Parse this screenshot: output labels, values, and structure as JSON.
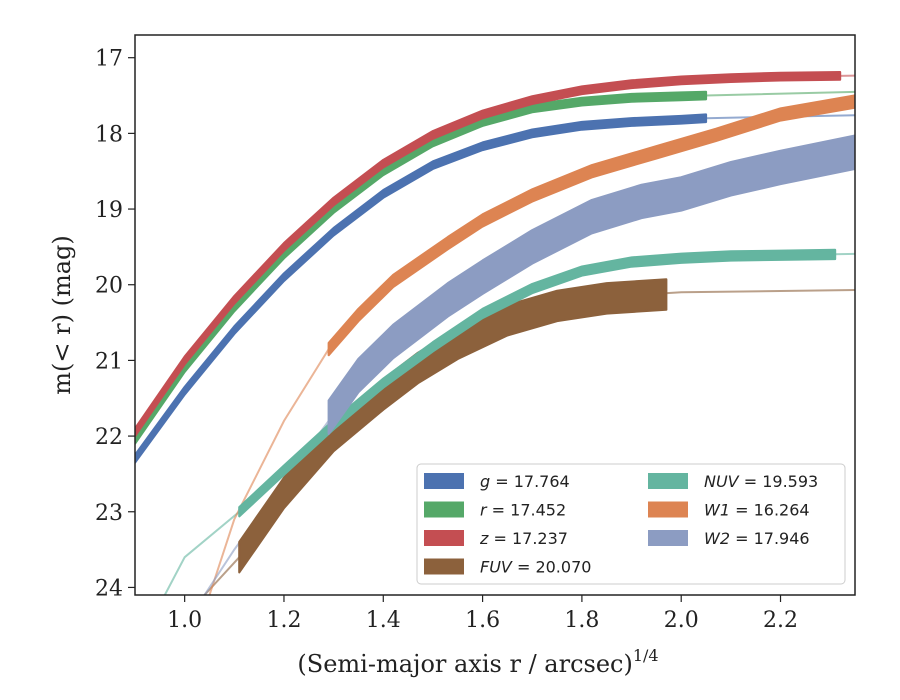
{
  "chart_data": {
    "type": "line",
    "title": "",
    "xlabel": "(Semi-major axis r / arcsec)",
    "xlabel_superscript": "1/4",
    "ylabel": "m(< r) (mag)",
    "xlim": [
      0.9,
      2.35
    ],
    "ylim": [
      24.1,
      16.7
    ],
    "y_inverted": true,
    "grid": false,
    "legend_placement": "lower-right",
    "xticks": [
      "1.0",
      "1.2",
      "1.4",
      "1.6",
      "1.8",
      "2.0",
      "2.2"
    ],
    "yticks": [
      "17",
      "18",
      "19",
      "20",
      "21",
      "22",
      "23",
      "24"
    ],
    "series": [
      {
        "name": "g",
        "label_value": "17.764",
        "color": "#4c72b0",
        "data_x": [
          0.9,
          1.0,
          1.1,
          1.2,
          1.3,
          1.4,
          1.5,
          1.6,
          1.7,
          1.8,
          1.9,
          2.0,
          2.05
        ],
        "data_y": [
          22.3,
          21.4,
          20.6,
          19.9,
          19.3,
          18.8,
          18.42,
          18.17,
          18.0,
          17.9,
          17.85,
          17.82,
          17.8
        ],
        "model_x": [
          2.05,
          2.35
        ],
        "model_y": [
          17.8,
          17.76
        ],
        "band": 0.05
      },
      {
        "name": "r",
        "label_value": "17.452",
        "color": "#55a868",
        "data_x": [
          0.9,
          1.0,
          1.1,
          1.2,
          1.3,
          1.4,
          1.5,
          1.6,
          1.7,
          1.8,
          1.9,
          2.0,
          2.05
        ],
        "data_y": [
          22.05,
          21.1,
          20.3,
          19.6,
          19.0,
          18.5,
          18.12,
          17.85,
          17.67,
          17.58,
          17.53,
          17.51,
          17.5
        ],
        "model_x": [
          2.05,
          2.35
        ],
        "model_y": [
          17.5,
          17.452
        ],
        "band": 0.05
      },
      {
        "name": "z",
        "label_value": "17.237",
        "color": "#c44e52",
        "data_x": [
          0.9,
          1.0,
          1.1,
          1.2,
          1.3,
          1.4,
          1.5,
          1.6,
          1.7,
          1.8,
          1.9,
          2.0,
          2.1,
          2.2,
          2.32
        ],
        "data_y": [
          21.95,
          21.0,
          20.2,
          19.5,
          18.9,
          18.4,
          18.02,
          17.75,
          17.56,
          17.43,
          17.35,
          17.3,
          17.27,
          17.25,
          17.24
        ],
        "model_x": [
          2.32,
          2.35
        ],
        "model_y": [
          17.24,
          17.237
        ],
        "band": 0.05
      },
      {
        "name": "FUV",
        "label_value": "20.070",
        "color": "#8c613c",
        "data_x": [
          1.11,
          1.2,
          1.3,
          1.4,
          1.47,
          1.55,
          1.65,
          1.75,
          1.85,
          1.97
        ],
        "data_y": [
          23.6,
          22.75,
          22.0,
          21.45,
          21.1,
          20.78,
          20.47,
          20.28,
          20.18,
          20.13
        ],
        "model_x": [
          1.04,
          1.11,
          1.2,
          1.4,
          1.6,
          1.8,
          2.0,
          2.35
        ],
        "model_y": [
          24.1,
          23.6,
          22.75,
          21.45,
          20.55,
          20.18,
          20.1,
          20.07
        ],
        "band": 0.2
      },
      {
        "name": "NUV",
        "label_value": "19.593",
        "color": "#64b5a0",
        "data_x": [
          1.11,
          1.2,
          1.3,
          1.4,
          1.5,
          1.6,
          1.7,
          1.8,
          1.9,
          2.0,
          2.1,
          2.2,
          2.31
        ],
        "data_y": [
          23.0,
          22.45,
          21.85,
          21.3,
          20.82,
          20.38,
          20.05,
          19.82,
          19.7,
          19.65,
          19.62,
          19.61,
          19.6
        ],
        "model_x": [
          0.96,
          1.0,
          1.11,
          1.3,
          1.5,
          1.7,
          1.9,
          2.1,
          2.35
        ],
        "model_y": [
          24.1,
          23.6,
          23.0,
          21.85,
          20.82,
          20.05,
          19.7,
          19.62,
          19.593
        ],
        "band": 0.06
      },
      {
        "name": "W1",
        "label_value": "16.264",
        "color": "#dd8452",
        "data_x": [
          1.29,
          1.35,
          1.42,
          1.53,
          1.6,
          1.7,
          1.82,
          1.95,
          2.07,
          2.2,
          2.35
        ],
        "data_y": [
          20.85,
          20.4,
          19.95,
          19.45,
          19.15,
          18.82,
          18.5,
          18.25,
          18.02,
          17.75,
          17.58
        ],
        "model_x": [
          1.05,
          1.1,
          1.2,
          1.29,
          1.4,
          1.55,
          1.7,
          1.9,
          2.1,
          2.35
        ],
        "model_y": [
          24.1,
          23.1,
          21.8,
          20.85,
          20.05,
          19.4,
          18.85,
          18.35,
          17.95,
          17.55
        ],
        "band": 0.08
      },
      {
        "name": "W2",
        "label_value": "17.946",
        "color": "#8c9cc2",
        "data_x": [
          1.29,
          1.35,
          1.42,
          1.53,
          1.6,
          1.7,
          1.82,
          1.92,
          2.0,
          2.1,
          2.2,
          2.35
        ],
        "data_y": [
          21.75,
          21.2,
          20.75,
          20.2,
          19.9,
          19.5,
          19.1,
          18.9,
          18.8,
          18.6,
          18.45,
          18.25
        ],
        "model_x": [
          1.04,
          1.1,
          1.2,
          1.29,
          1.35
        ],
        "model_y": [
          24.1,
          23.5,
          22.6,
          21.8,
          21.2
        ],
        "band": 0.22
      }
    ]
  }
}
